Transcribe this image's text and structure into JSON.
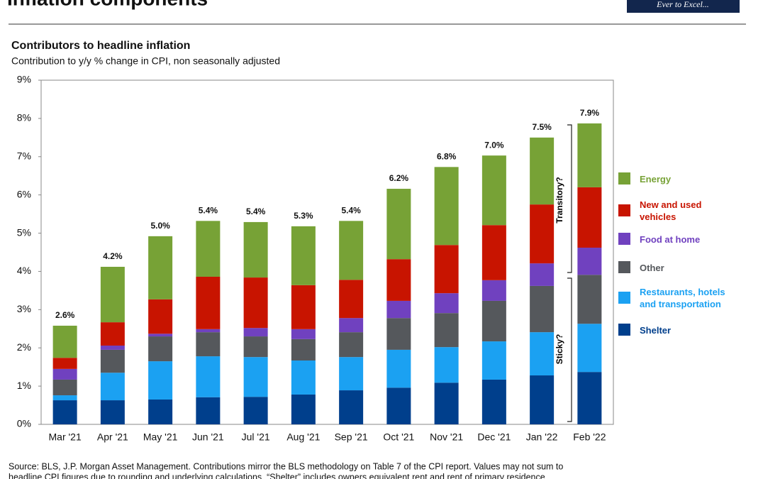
{
  "header": {
    "title": "Inflation components",
    "logo": "Ever to Excel..."
  },
  "chart_data": {
    "type": "stacked_bar",
    "title": "Contributors to headline inflation",
    "subtitle": "Contribution to y/y % change in CPI, non seasonally adjusted",
    "categories": [
      "Mar '21",
      "Apr '21",
      "May '21",
      "Jun '21",
      "Jul '21",
      "Aug '21",
      "Sep '21",
      "Oct '21",
      "Nov '21",
      "Dec '21",
      "Jan '22",
      "Feb '22"
    ],
    "series": [
      {
        "name": "Shelter",
        "color": "#003f8c",
        "values": [
          0.63,
          0.63,
          0.65,
          0.71,
          0.72,
          0.78,
          0.89,
          0.96,
          1.09,
          1.17,
          1.28,
          1.37
        ]
      },
      {
        "name": "Restaurants, hotels and transportation",
        "color": "#1ba1f2",
        "values": [
          0.13,
          0.72,
          1.0,
          1.07,
          1.04,
          0.89,
          0.87,
          0.99,
          0.93,
          1.0,
          1.13,
          1.26
        ]
      },
      {
        "name": "Other",
        "color": "#55585c",
        "values": [
          0.41,
          0.6,
          0.65,
          0.63,
          0.54,
          0.56,
          0.65,
          0.83,
          0.89,
          1.06,
          1.21,
          1.28
        ]
      },
      {
        "name": "Food  at home",
        "color": "#7041bf",
        "values": [
          0.28,
          0.11,
          0.07,
          0.08,
          0.22,
          0.26,
          0.37,
          0.45,
          0.52,
          0.54,
          0.59,
          0.71
        ]
      },
      {
        "name": "New and used vehicles",
        "color": "#c81400",
        "values": [
          0.29,
          0.61,
          0.9,
          1.37,
          1.32,
          1.15,
          1.0,
          1.09,
          1.26,
          1.44,
          1.54,
          1.58
        ]
      },
      {
        "name": "Energy",
        "color": "#77a236",
        "values": [
          0.84,
          1.45,
          1.65,
          1.46,
          1.45,
          1.54,
          1.54,
          1.84,
          2.04,
          1.82,
          1.75,
          1.67
        ]
      }
    ],
    "total_labels": [
      "2.6%",
      "4.2%",
      "5.0%",
      "5.4%",
      "5.4%",
      "5.3%",
      "5.4%",
      "6.2%",
      "6.8%",
      "7.0%",
      "7.5%",
      "7.9%"
    ],
    "ylim": [
      0,
      9
    ],
    "yticks": [
      {
        "value": 0,
        "label": "0%"
      },
      {
        "value": 1,
        "label": "1%"
      },
      {
        "value": 2,
        "label": "2%"
      },
      {
        "value": 3,
        "label": "3%"
      },
      {
        "value": 4,
        "label": "4%"
      },
      {
        "value": 5,
        "label": "5%"
      },
      {
        "value": 6,
        "label": "6%"
      },
      {
        "value": 7,
        "label": "7%"
      },
      {
        "value": 8,
        "label": "8%"
      },
      {
        "value": 9,
        "label": "9%"
      }
    ],
    "annotations": [
      "Transitory?",
      "Sticky?"
    ]
  },
  "footnote": [
    "Source: BLS, J.P. Morgan Asset Management. Contributions mirror the BLS methodology on Table 7 of the CPI report. Values may not sum to",
    "headline CPI figures due to rounding and underlying calculations. “Shelter” includes owners equivalent rent and rent of primary residence."
  ]
}
